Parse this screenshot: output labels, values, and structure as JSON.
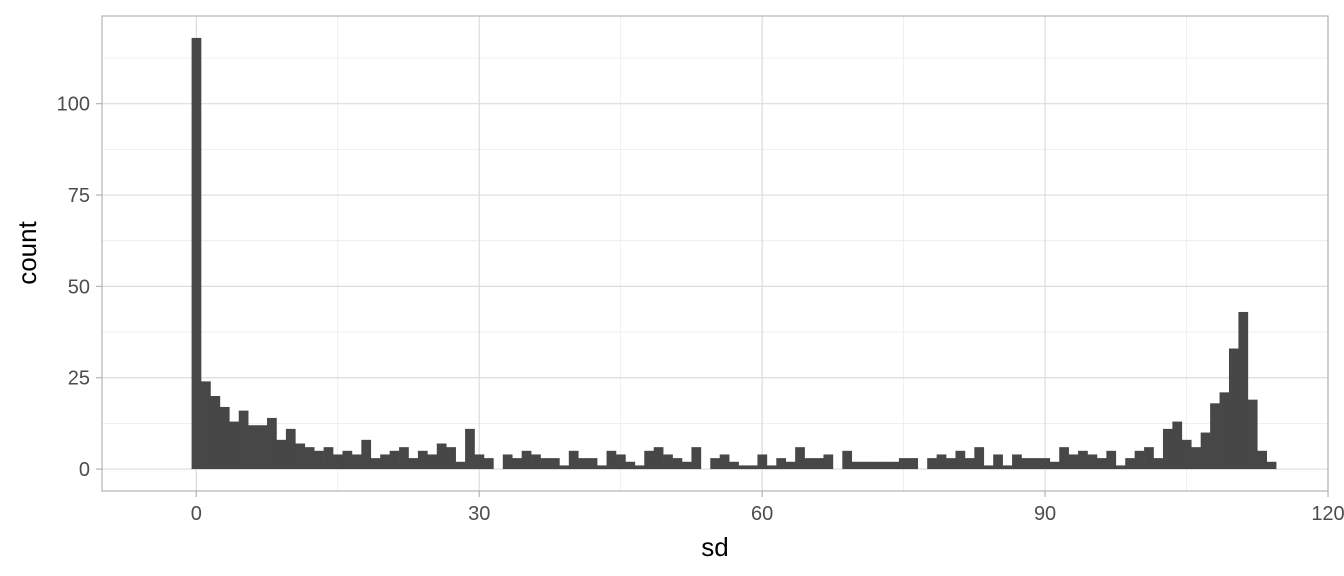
{
  "chart_data": {
    "type": "bar",
    "subtype": "histogram",
    "title": "",
    "xlabel": "sd",
    "ylabel": "count",
    "xlim": [
      -10,
      120
    ],
    "ylim": [
      -6,
      124
    ],
    "x_ticks": [
      0,
      30,
      60,
      90,
      120
    ],
    "y_ticks": [
      0,
      25,
      50,
      75,
      100
    ],
    "x_minor_ticks": [
      15,
      45,
      75,
      105
    ],
    "y_minor_ticks": [
      12.5,
      37.5,
      62.5,
      87.5,
      112.5
    ],
    "bin_width": 1,
    "bin_centers_start": 0,
    "values": [
      118,
      24,
      20,
      17,
      13,
      16,
      12,
      12,
      14,
      8,
      11,
      7,
      6,
      5,
      6,
      4,
      5,
      4,
      8,
      3,
      4,
      5,
      6,
      3,
      5,
      4,
      7,
      6,
      2,
      11,
      4,
      3,
      0,
      4,
      3,
      5,
      4,
      3,
      3,
      1,
      5,
      3,
      3,
      1,
      5,
      4,
      2,
      1,
      5,
      6,
      4,
      3,
      2,
      6,
      0,
      3,
      4,
      2,
      1,
      1,
      4,
      1,
      3,
      2,
      6,
      3,
      3,
      4,
      0,
      5,
      2,
      2,
      2,
      2,
      2,
      3,
      3,
      0,
      3,
      4,
      3,
      5,
      3,
      6,
      1,
      4,
      1,
      4,
      3,
      3,
      3,
      2,
      6,
      4,
      5,
      4,
      3,
      5,
      1,
      3,
      5,
      6,
      3,
      11,
      13,
      8,
      6,
      10,
      18,
      21,
      33,
      43,
      19,
      5,
      2
    ],
    "bar_color": "#474747",
    "panel_background": "#ffffff",
    "panel_border_color": "#b3b3b3",
    "grid_major_color": "#dcdcdc",
    "grid_minor_color": "#ececec",
    "grid": true,
    "legend": "none"
  }
}
